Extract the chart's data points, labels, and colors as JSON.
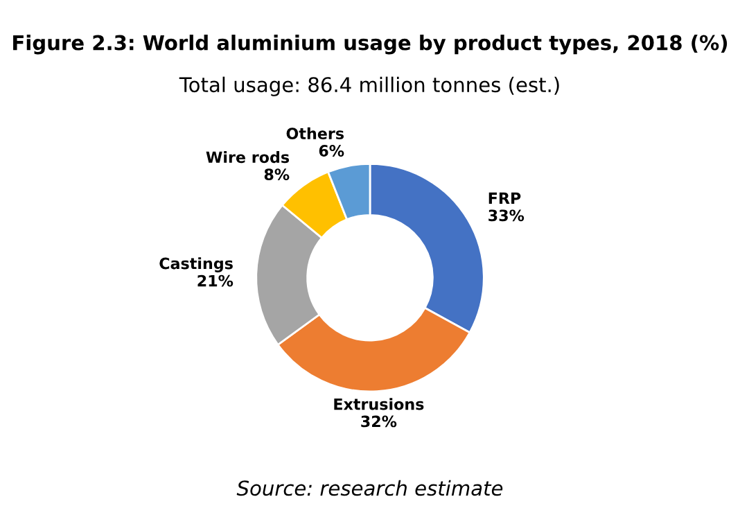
{
  "chart_data": {
    "type": "donut",
    "title": "Figure 2.3: World aluminium usage by product types, 2018 (%)",
    "subtitle": "Total usage: 86.4 million tonnes (est.)",
    "categories": [
      "FRP",
      "Extrusions",
      "Castings",
      "Wire rods",
      "Others"
    ],
    "values": [
      33,
      32,
      21,
      8,
      6
    ],
    "value_labels": [
      "33%",
      "32%",
      "21%",
      "8%",
      "6%"
    ],
    "colors": [
      "#4472c4",
      "#ed7d31",
      "#a5a5a5",
      "#ffc000",
      "#5b9bd5"
    ],
    "annotations": [
      "Source: research estimate"
    ],
    "legend": false
  }
}
